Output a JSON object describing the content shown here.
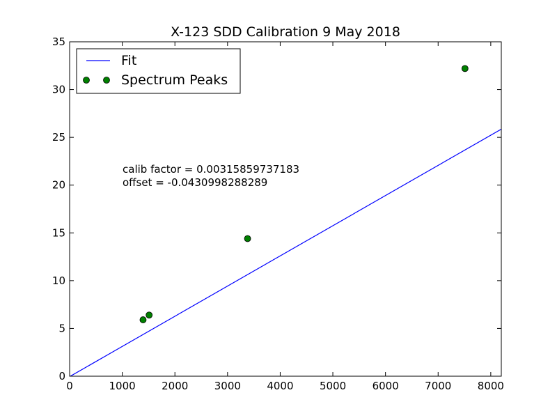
{
  "chart_data": {
    "type": "scatter",
    "title": "X-123 SDD Calibration 9 May 2018",
    "xlabel": "",
    "ylabel": "",
    "xlim": [
      0,
      8200
    ],
    "ylim": [
      0,
      35
    ],
    "x_ticks": [
      0,
      1000,
      2000,
      3000,
      4000,
      5000,
      6000,
      7000,
      8000
    ],
    "y_ticks": [
      0,
      5,
      10,
      15,
      20,
      25,
      30,
      35
    ],
    "grid": false,
    "legend_position": "top-left",
    "series": [
      {
        "name": "Fit",
        "kind": "line",
        "color": "#0000ff",
        "slope": 0.00315859737183,
        "intercept": -0.0430998288289,
        "x_range": [
          0,
          8200
        ]
      },
      {
        "name": "Spectrum Peaks",
        "kind": "markers",
        "color": "#008000",
        "x": [
          1395,
          1510,
          3380,
          7510
        ],
        "y": [
          5.9,
          6.4,
          14.4,
          32.2
        ]
      }
    ],
    "annotations": [
      "calib factor = 0.00315859737183",
      "offset = -0.0430998288289"
    ]
  }
}
